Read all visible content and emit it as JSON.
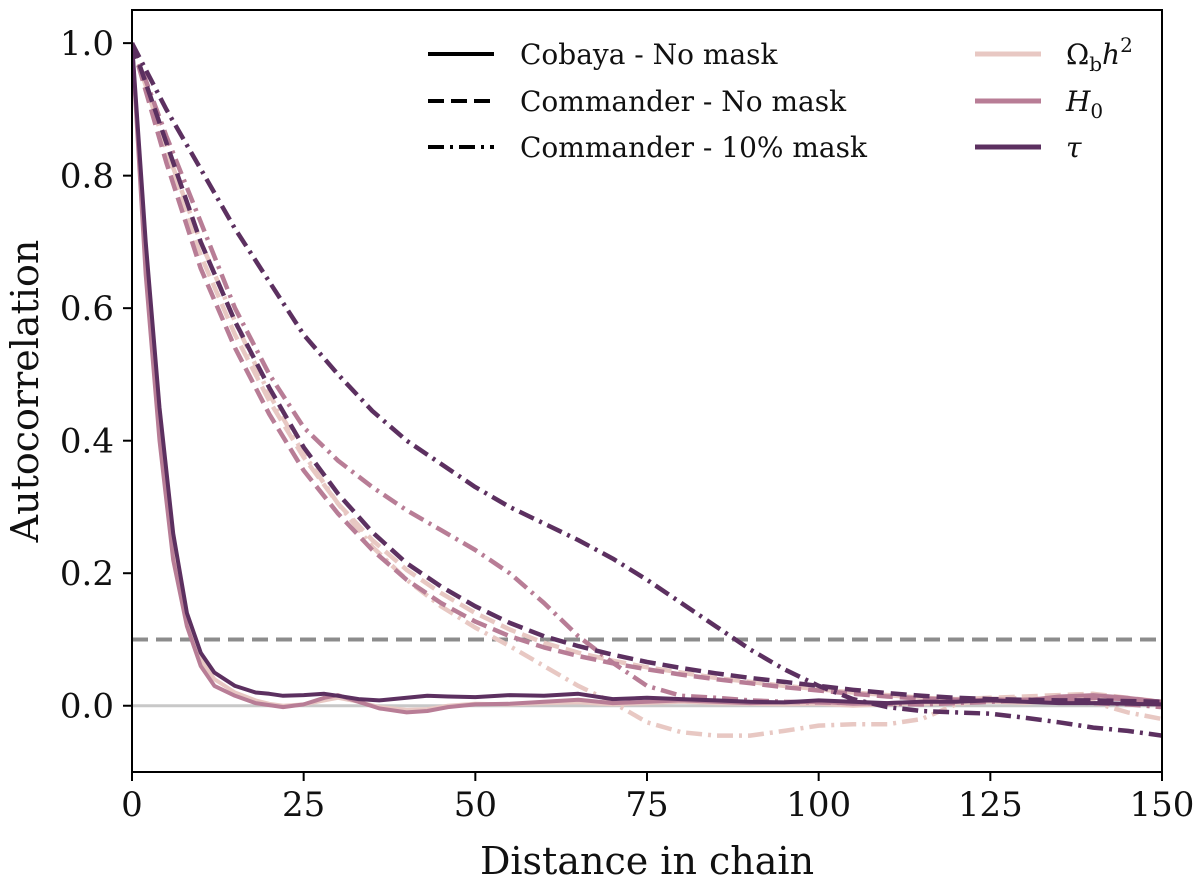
{
  "chart_data": {
    "type": "line",
    "title": "",
    "xlabel": "Distance in chain",
    "ylabel": "Autocorrelation",
    "xlim": [
      0,
      150
    ],
    "ylim": [
      -0.1,
      1.05
    ],
    "xticks": [
      0,
      25,
      50,
      75,
      100,
      125,
      150
    ],
    "yticks": [
      0.0,
      0.2,
      0.4,
      0.6,
      0.8,
      1.0
    ],
    "xtick_labels": [
      "0",
      "25",
      "50",
      "75",
      "100",
      "125",
      "150"
    ],
    "ytick_labels": [
      "0.0",
      "0.2",
      "0.4",
      "0.6",
      "0.8",
      "1.0"
    ],
    "grid": false,
    "colors": {
      "omega": "#e8c8c3",
      "h0": "#b87d96",
      "tau": "#5c3060",
      "threshold": "#8c8c8c",
      "zero": "#c8c8c8"
    },
    "reference_lines": [
      {
        "name": "threshold",
        "y": 0.1,
        "style": "dashed"
      },
      {
        "name": "zero",
        "y": 0.0,
        "style": "solid"
      }
    ],
    "legend_styles": {
      "location": "top",
      "entries": [
        {
          "label": "Cobaya - No mask",
          "style": "solid"
        },
        {
          "label": "Commander - No mask",
          "style": "dashed"
        },
        {
          "label": "Commander - 10% mask",
          "style": "dashdot"
        }
      ]
    },
    "legend_params": {
      "location": "top-right",
      "entries": [
        {
          "key": "omega",
          "label": "Ωbh2",
          "base": "Ω",
          "sub": "b",
          "mid": "h",
          "sup": "2"
        },
        {
          "key": "h0",
          "label": "H0",
          "base": "H",
          "sub": "0"
        },
        {
          "key": "tau",
          "label": "τ",
          "base": "τ"
        }
      ]
    },
    "series": [
      {
        "name": "Omega_b h^2 - Cobaya - No mask",
        "param": "omega",
        "style": "solid",
        "x": [
          0,
          2,
          4,
          6,
          8,
          10,
          12,
          15,
          18,
          20,
          22,
          25,
          28,
          30,
          33,
          36,
          40,
          43,
          46,
          50,
          55,
          60,
          65,
          70,
          75,
          80,
          85,
          90,
          95,
          100,
          105,
          110,
          115,
          120,
          125,
          130,
          135,
          140,
          145,
          150
        ],
        "y": [
          1.0,
          0.68,
          0.42,
          0.24,
          0.13,
          0.07,
          0.04,
          0.02,
          0.008,
          0.003,
          0.0,
          0.002,
          0.008,
          0.012,
          0.006,
          -0.002,
          -0.006,
          -0.005,
          0.0,
          0.003,
          0.002,
          0.004,
          0.005,
          0.002,
          0.004,
          0.006,
          0.004,
          0.003,
          0.002,
          0.003,
          0.0,
          0.002,
          0.003,
          0.004,
          0.006,
          0.004,
          0.008,
          0.012,
          0.01,
          0.006
        ]
      },
      {
        "name": "H0 - Cobaya - No mask",
        "param": "h0",
        "style": "solid",
        "x": [
          0,
          2,
          4,
          6,
          8,
          10,
          12,
          15,
          18,
          20,
          22,
          25,
          28,
          30,
          33,
          36,
          40,
          43,
          46,
          50,
          55,
          60,
          65,
          70,
          75,
          80,
          85,
          90,
          95,
          100,
          105,
          110,
          115,
          120,
          125,
          130,
          135,
          140,
          145,
          150
        ],
        "y": [
          1.0,
          0.65,
          0.4,
          0.22,
          0.12,
          0.06,
          0.03,
          0.015,
          0.004,
          0.001,
          -0.002,
          0.002,
          0.012,
          0.016,
          0.006,
          -0.004,
          -0.01,
          -0.008,
          -0.002,
          0.002,
          0.003,
          0.006,
          0.009,
          0.004,
          0.006,
          0.008,
          0.006,
          0.004,
          0.005,
          0.006,
          0.003,
          0.004,
          0.006,
          0.006,
          0.01,
          0.008,
          0.014,
          0.016,
          0.012,
          0.006
        ]
      },
      {
        "name": "tau - Cobaya - No mask",
        "param": "tau",
        "style": "solid",
        "x": [
          0,
          2,
          4,
          6,
          8,
          10,
          12,
          15,
          18,
          20,
          22,
          25,
          28,
          30,
          33,
          36,
          40,
          43,
          46,
          50,
          55,
          60,
          65,
          70,
          75,
          80,
          85,
          90,
          95,
          100,
          105,
          110,
          115,
          120,
          125,
          130,
          135,
          140,
          145,
          150
        ],
        "y": [
          1.0,
          0.7,
          0.45,
          0.26,
          0.14,
          0.08,
          0.05,
          0.03,
          0.02,
          0.018,
          0.015,
          0.016,
          0.018,
          0.015,
          0.01,
          0.008,
          0.012,
          0.015,
          0.014,
          0.013,
          0.016,
          0.015,
          0.018,
          0.01,
          0.012,
          0.01,
          0.008,
          0.006,
          0.005,
          0.008,
          0.006,
          0.004,
          0.006,
          0.006,
          0.008,
          0.006,
          0.004,
          0.004,
          0.003,
          0.002
        ]
      },
      {
        "name": "Omega_b h^2 - Commander - No mask",
        "param": "omega",
        "style": "dashed",
        "x": [
          0,
          5,
          10,
          15,
          20,
          25,
          30,
          35,
          40,
          45,
          50,
          55,
          60,
          65,
          70,
          75,
          80,
          85,
          90,
          95,
          100,
          105,
          110,
          115,
          120,
          125,
          130,
          135,
          140,
          145,
          150
        ],
        "y": [
          1.0,
          0.83,
          0.68,
          0.56,
          0.46,
          0.375,
          0.305,
          0.25,
          0.205,
          0.17,
          0.14,
          0.115,
          0.095,
          0.08,
          0.068,
          0.058,
          0.05,
          0.042,
          0.036,
          0.03,
          0.025,
          0.02,
          0.016,
          0.012,
          0.01,
          0.012,
          0.014,
          0.016,
          0.018,
          0.012,
          0.006
        ]
      },
      {
        "name": "H0 - Commander - No mask",
        "param": "h0",
        "style": "dashed",
        "x": [
          0,
          5,
          10,
          15,
          20,
          25,
          30,
          35,
          40,
          45,
          50,
          55,
          60,
          65,
          70,
          75,
          80,
          85,
          90,
          95,
          100,
          105,
          110,
          115,
          120,
          125,
          130,
          135,
          140,
          145,
          150
        ],
        "y": [
          1.0,
          0.82,
          0.66,
          0.54,
          0.44,
          0.355,
          0.29,
          0.235,
          0.19,
          0.155,
          0.127,
          0.105,
          0.088,
          0.075,
          0.064,
          0.055,
          0.047,
          0.04,
          0.034,
          0.028,
          0.023,
          0.018,
          0.014,
          0.011,
          0.009,
          0.008,
          0.009,
          0.01,
          0.012,
          0.01,
          0.006
        ]
      },
      {
        "name": "tau - Commander - No mask",
        "param": "tau",
        "style": "dashed",
        "x": [
          0,
          5,
          10,
          15,
          20,
          25,
          30,
          35,
          40,
          45,
          50,
          55,
          60,
          65,
          70,
          75,
          80,
          85,
          90,
          95,
          100,
          105,
          110,
          115,
          120,
          125,
          130,
          135,
          140,
          145,
          150
        ],
        "y": [
          1.0,
          0.85,
          0.7,
          0.58,
          0.48,
          0.39,
          0.32,
          0.262,
          0.215,
          0.18,
          0.15,
          0.125,
          0.105,
          0.09,
          0.077,
          0.066,
          0.057,
          0.049,
          0.042,
          0.036,
          0.03,
          0.024,
          0.019,
          0.015,
          0.012,
          0.01,
          0.009,
          0.008,
          0.008,
          0.007,
          0.006
        ]
      },
      {
        "name": "Omega_b h^2 - Commander - 10% mask",
        "param": "omega",
        "style": "dashdot",
        "x": [
          0,
          5,
          10,
          15,
          20,
          25,
          30,
          35,
          40,
          45,
          50,
          55,
          60,
          65,
          70,
          75,
          80,
          85,
          90,
          95,
          100,
          105,
          110,
          115,
          120,
          125,
          130,
          135,
          140,
          145,
          150
        ],
        "y": [
          1.0,
          0.84,
          0.7,
          0.58,
          0.47,
          0.38,
          0.305,
          0.24,
          0.19,
          0.15,
          0.118,
          0.09,
          0.06,
          0.03,
          0.005,
          -0.025,
          -0.04,
          -0.045,
          -0.045,
          -0.038,
          -0.03,
          -0.028,
          -0.028,
          -0.02,
          0.002,
          0.01,
          0.012,
          0.008,
          0.005,
          -0.01,
          -0.02
        ]
      },
      {
        "name": "H0 - Commander - 10% mask",
        "param": "h0",
        "style": "dashdot",
        "x": [
          0,
          5,
          10,
          15,
          20,
          25,
          30,
          35,
          40,
          45,
          50,
          55,
          60,
          65,
          70,
          75,
          80,
          85,
          90,
          95,
          100,
          105,
          110,
          115,
          120,
          125,
          130,
          135,
          140,
          145,
          150
        ],
        "y": [
          1.0,
          0.86,
          0.73,
          0.6,
          0.5,
          0.42,
          0.37,
          0.33,
          0.295,
          0.265,
          0.235,
          0.2,
          0.155,
          0.105,
          0.065,
          0.03,
          0.015,
          0.012,
          0.008,
          0.006,
          0.005,
          0.004,
          0.003,
          0.002,
          0.004,
          0.006,
          0.008,
          0.006,
          0.004,
          0.002,
          -0.002
        ]
      },
      {
        "name": "tau - Commander - 10% mask",
        "param": "tau",
        "style": "dashdot",
        "x": [
          0,
          5,
          10,
          15,
          20,
          25,
          30,
          35,
          40,
          45,
          50,
          55,
          60,
          65,
          70,
          75,
          80,
          85,
          90,
          95,
          100,
          105,
          110,
          115,
          120,
          125,
          130,
          135,
          140,
          145,
          150
        ],
        "y": [
          1.0,
          0.9,
          0.81,
          0.72,
          0.64,
          0.56,
          0.5,
          0.445,
          0.4,
          0.365,
          0.33,
          0.3,
          0.275,
          0.25,
          0.222,
          0.19,
          0.155,
          0.12,
          0.085,
          0.055,
          0.03,
          0.01,
          -0.002,
          -0.008,
          -0.01,
          -0.012,
          -0.018,
          -0.025,
          -0.033,
          -0.038,
          -0.045
        ]
      }
    ]
  }
}
